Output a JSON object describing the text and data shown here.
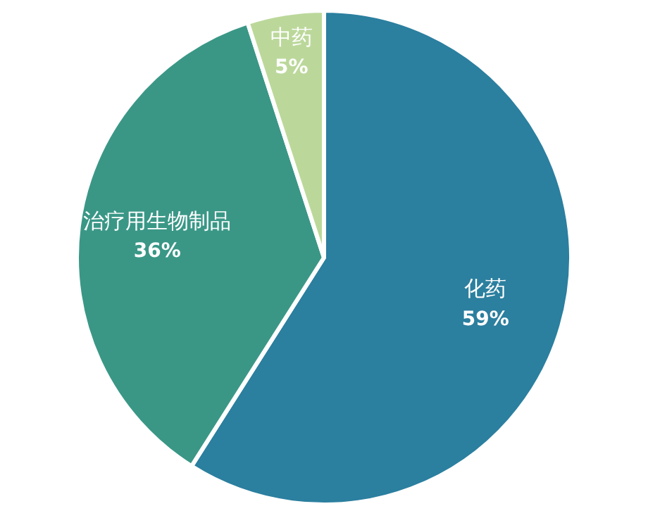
{
  "chart_data": {
    "type": "pie",
    "categories": [
      "化药",
      "治疗用生物制品",
      "中药"
    ],
    "values": [
      59,
      36,
      5
    ],
    "colors": [
      "#2b7f9f",
      "#3a9786",
      "#bbd89a"
    ],
    "value_labels": [
      "59%",
      "36%",
      "5%"
    ],
    "legend": false
  }
}
